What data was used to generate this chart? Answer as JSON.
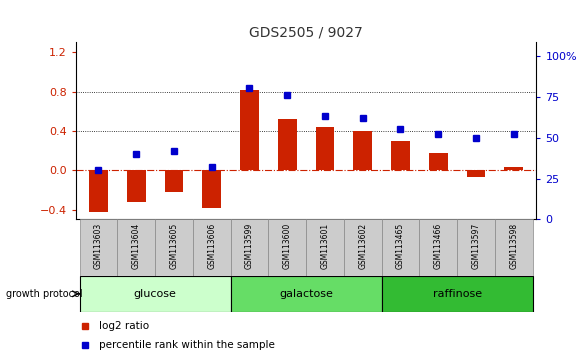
{
  "title": "GDS2505 / 9027",
  "samples": [
    "GSM113603",
    "GSM113604",
    "GSM113605",
    "GSM113606",
    "GSM113599",
    "GSM113600",
    "GSM113601",
    "GSM113602",
    "GSM113465",
    "GSM113466",
    "GSM113597",
    "GSM113598"
  ],
  "log2_ratio": [
    -0.42,
    -0.32,
    -0.22,
    -0.38,
    0.82,
    0.52,
    0.44,
    0.4,
    0.3,
    0.18,
    -0.07,
    0.03
  ],
  "percentile_rank": [
    30,
    40,
    42,
    32,
    80,
    76,
    63,
    62,
    55,
    52,
    50,
    52
  ],
  "groups": [
    {
      "label": "glucose",
      "start": 0,
      "end": 4,
      "color": "#ccffcc"
    },
    {
      "label": "galactose",
      "start": 4,
      "end": 8,
      "color": "#66dd66"
    },
    {
      "label": "raffinose",
      "start": 8,
      "end": 12,
      "color": "#33bb33"
    }
  ],
  "bar_color": "#cc2200",
  "dot_color": "#0000cc",
  "ylim_left": [
    -0.5,
    1.3
  ],
  "ylim_right": [
    0,
    108
  ],
  "yticks_left": [
    -0.4,
    0.0,
    0.4,
    0.8,
    1.2
  ],
  "yticks_right": [
    0,
    25,
    50,
    75,
    100
  ],
  "hlines_dotted": [
    0.4,
    0.8
  ],
  "zero_line_color": "#cc2200",
  "bg_color": "#ffffff",
  "legend_log2": "log2 ratio",
  "legend_pct": "percentile rank within the sample",
  "growth_label": "growth protocol",
  "title_color": "#333333",
  "left_label_color": "#cc2200",
  "right_label_color": "#0000cc",
  "bar_width": 0.5,
  "sample_box_color": "#cccccc",
  "sample_box_edge": "#888888"
}
